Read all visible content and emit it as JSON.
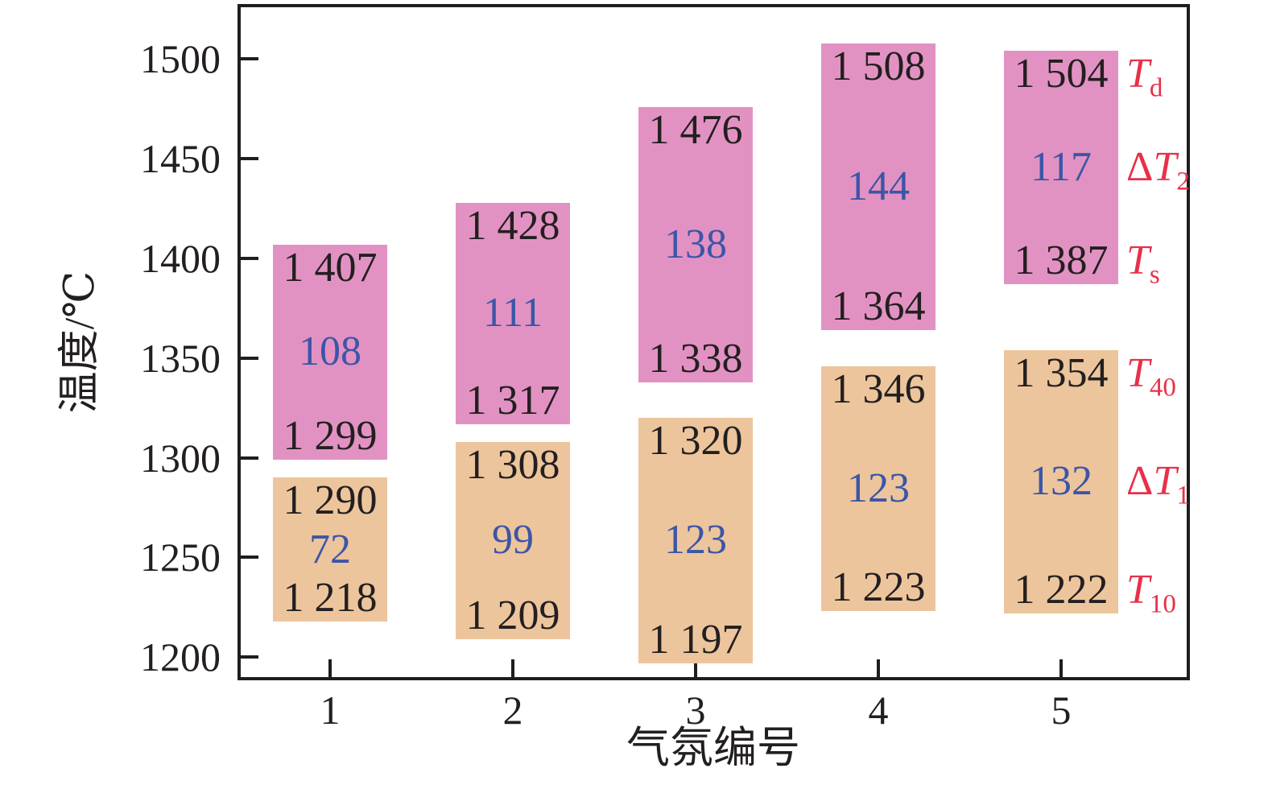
{
  "chart_data": {
    "type": "bar",
    "subtype": "floating_range_columns",
    "title": "",
    "xlabel": "气氛编号",
    "ylabel": "温度/℃",
    "categories": [
      "1",
      "2",
      "3",
      "4",
      "5"
    ],
    "ylim": [
      1190,
      1526
    ],
    "yticks": [
      1200,
      1250,
      1300,
      1350,
      1400,
      1450,
      1500
    ],
    "grid": false,
    "legend_position": "right-inside",
    "value_label_colors": {
      "bounds": "#231f20",
      "delta": "#3c55a8"
    },
    "series": [
      {
        "name": "upper_range_Ts_to_Td",
        "color": "#e292c2",
        "ranges": [
          {
            "category": "1",
            "high": 1407,
            "low": 1299,
            "delta": 108,
            "high_label": "1 407",
            "low_label": "1 299",
            "delta_label": "108"
          },
          {
            "category": "2",
            "high": 1428,
            "low": 1317,
            "delta": 111,
            "high_label": "1 428",
            "low_label": "1 317",
            "delta_label": "111"
          },
          {
            "category": "3",
            "high": 1476,
            "low": 1338,
            "delta": 138,
            "high_label": "1 476",
            "low_label": "1 338",
            "delta_label": "138"
          },
          {
            "category": "4",
            "high": 1508,
            "low": 1364,
            "delta": 144,
            "high_label": "1 508",
            "low_label": "1 364",
            "delta_label": "144"
          },
          {
            "category": "5",
            "high": 1504,
            "low": 1387,
            "delta": 117,
            "high_label": "1 504",
            "low_label": "1 387",
            "delta_label": "117"
          }
        ]
      },
      {
        "name": "lower_range_T10_to_T40",
        "color": "#edc59c",
        "ranges": [
          {
            "category": "1",
            "high": 1290,
            "low": 1218,
            "delta": 72,
            "high_label": "1 290",
            "low_label": "1 218",
            "delta_label": "72"
          },
          {
            "category": "2",
            "high": 1308,
            "low": 1209,
            "delta": 99,
            "high_label": "1 308",
            "low_label": "1 209",
            "delta_label": "99"
          },
          {
            "category": "3",
            "high": 1320,
            "low": 1197,
            "delta": 123,
            "high_label": "1 320",
            "low_label": "1 197",
            "delta_label": "123"
          },
          {
            "category": "4",
            "high": 1346,
            "low": 1223,
            "delta": 123,
            "high_label": "1 346",
            "low_label": "1 223",
            "delta_label": "123"
          },
          {
            "category": "5",
            "high": 1354,
            "low": 1222,
            "delta": 132,
            "high_label": "1 354",
            "low_label": "1 222",
            "delta_label": "132"
          }
        ]
      }
    ],
    "right_labels": {
      "color": "#e8304a",
      "items": [
        {
          "text": "T",
          "sub": "d",
          "anchor": "upper_top"
        },
        {
          "text": "ΔT",
          "sub": "2",
          "anchor": "upper_mid"
        },
        {
          "text": "T",
          "sub": "s",
          "anchor": "upper_bottom"
        },
        {
          "text": "T",
          "sub": "40",
          "anchor": "lower_top"
        },
        {
          "text": "ΔT",
          "sub": "1",
          "anchor": "lower_mid"
        },
        {
          "text": "T",
          "sub": "10",
          "anchor": "lower_bottom"
        }
      ]
    }
  }
}
